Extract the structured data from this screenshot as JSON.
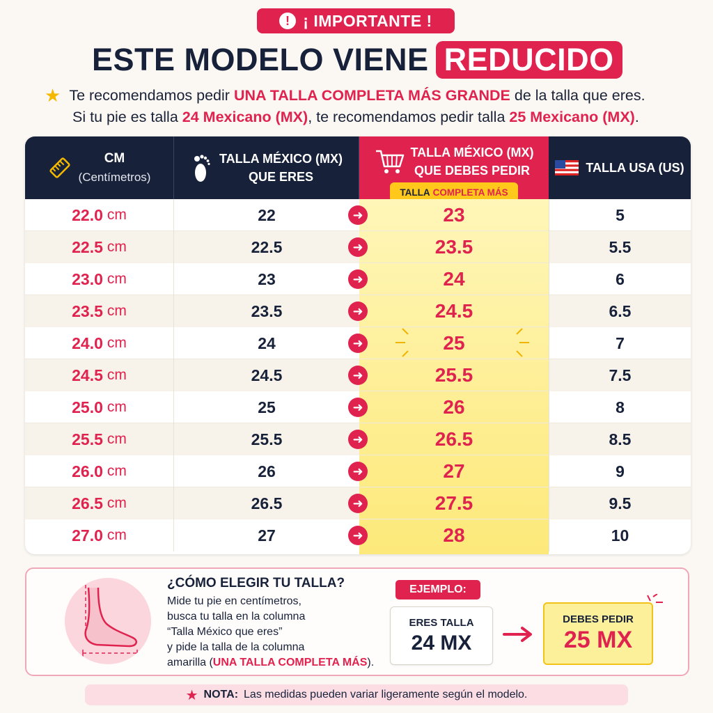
{
  "header": {
    "badge": "¡ IMPORTANTE !",
    "badge_icon": "exclamation-icon",
    "headline_main": "ESTE MODELO VIENE",
    "headline_highlight": "REDUCIDO",
    "rec1_pre": "Te recomendamos pedir",
    "rec1_hl": "UNA TALLA COMPLETA MÁS GRANDE",
    "rec1_post": "de la talla que eres.",
    "rec2_a": "Si tu pie es talla",
    "rec2_b": "24 Mexicano (MX)",
    "rec2_c": ", te recomendamos pedir talla",
    "rec2_d": "25 Mexicano (MX)",
    "rec2_e": "."
  },
  "table": {
    "col1_title": "CM",
    "col1_sub": "(Centímetros)",
    "col2_line1": "TALLA MÉXICO (MX)",
    "col2_line2": "QUE ERES",
    "col3_line1": "TALLA MÉXICO (MX)",
    "col3_line2": "QUE DEBES PEDIR",
    "col3_pill_a": "TALLA",
    "col3_pill_b": "COMPLETA MÁS",
    "col4_title": "TALLA USA (US)",
    "unit": "cm",
    "rows": [
      {
        "cm": "22.0",
        "mx": "22",
        "order": "23",
        "us": "5"
      },
      {
        "cm": "22.5",
        "mx": "22.5",
        "order": "23.5",
        "us": "5.5"
      },
      {
        "cm": "23.0",
        "mx": "23",
        "order": "24",
        "us": "6"
      },
      {
        "cm": "23.5",
        "mx": "23.5",
        "order": "24.5",
        "us": "6.5"
      },
      {
        "cm": "24.0",
        "mx": "24",
        "order": "25",
        "us": "7"
      },
      {
        "cm": "24.5",
        "mx": "24.5",
        "order": "25.5",
        "us": "7.5"
      },
      {
        "cm": "25.0",
        "mx": "25",
        "order": "26",
        "us": "8"
      },
      {
        "cm": "25.5",
        "mx": "25.5",
        "order": "26.5",
        "us": "8.5"
      },
      {
        "cm": "26.0",
        "mx": "26",
        "order": "27",
        "us": "9"
      },
      {
        "cm": "26.5",
        "mx": "26.5",
        "order": "27.5",
        "us": "9.5"
      },
      {
        "cm": "27.0",
        "mx": "27",
        "order": "28",
        "us": "10"
      }
    ]
  },
  "howto": {
    "title": "¿CÓMO ELEGIR TU TALLA?",
    "line1": "Mide tu pie en centímetros,",
    "line2": "busca tu talla en la columna",
    "line3": "“Talla México que eres”",
    "line4": "y pide la talla de la columna",
    "line5_a": "amarilla (",
    "line5_b": "UNA TALLA COMPLETA MÁS",
    "line5_c": ").",
    "example_label": "EJEMPLO:",
    "ex1_small": "ERES TALLA",
    "ex1_large": "24 MX",
    "ex2_small": "DEBES PEDIR",
    "ex2_large": "25 MX"
  },
  "note": {
    "label": "NOTA:",
    "text": "Las medidas pueden variar ligeramente según el modelo."
  },
  "colors": {
    "accent": "#e0224e",
    "navy": "#17213a",
    "yellow": "#fde97a",
    "cream": "#fbf8f3"
  }
}
